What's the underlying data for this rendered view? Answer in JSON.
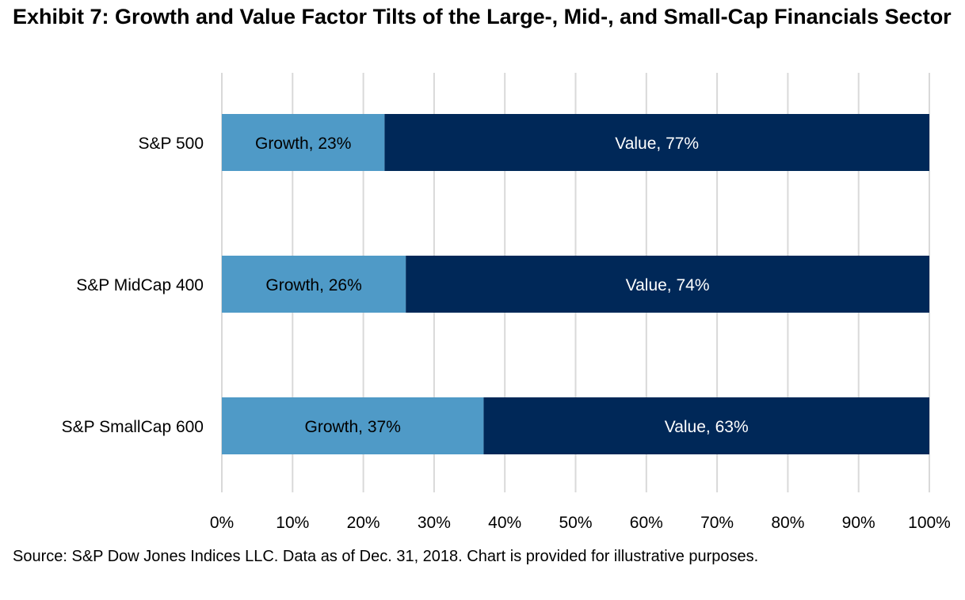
{
  "title": "Exhibit 7: Growth and Value Factor Tilts of the Large-, Mid-, and Small-Cap Financials Sector",
  "source_note": "Source: S&P Dow Jones Indices LLC.  Data as of Dec. 31, 2018.  Chart is provided for illustrative purposes.",
  "colors": {
    "growth": "#4f9ac7",
    "value": "#002858",
    "grid": "#d9d9d9",
    "growth_text": "#000000",
    "value_text": "#ffffff"
  },
  "chart_data": {
    "type": "bar",
    "orientation": "horizontal",
    "stacked": true,
    "categories": [
      "S&P 500",
      "S&P MidCap 400",
      "S&P SmallCap 600"
    ],
    "series": [
      {
        "name": "Growth",
        "values": [
          23,
          26,
          37
        ],
        "labels": [
          "Growth, 23%",
          "Growth, 26%",
          "Growth, 37%"
        ]
      },
      {
        "name": "Value",
        "values": [
          77,
          74,
          63
        ],
        "labels": [
          "Value, 77%",
          "Value, 74%",
          "Value, 63%"
        ]
      }
    ],
    "xlim": [
      0,
      100
    ],
    "xticks": [
      "0%",
      "10%",
      "20%",
      "30%",
      "40%",
      "50%",
      "60%",
      "70%",
      "80%",
      "90%",
      "100%"
    ],
    "grid": true,
    "legend": "none",
    "xlabel": "",
    "ylabel": ""
  }
}
